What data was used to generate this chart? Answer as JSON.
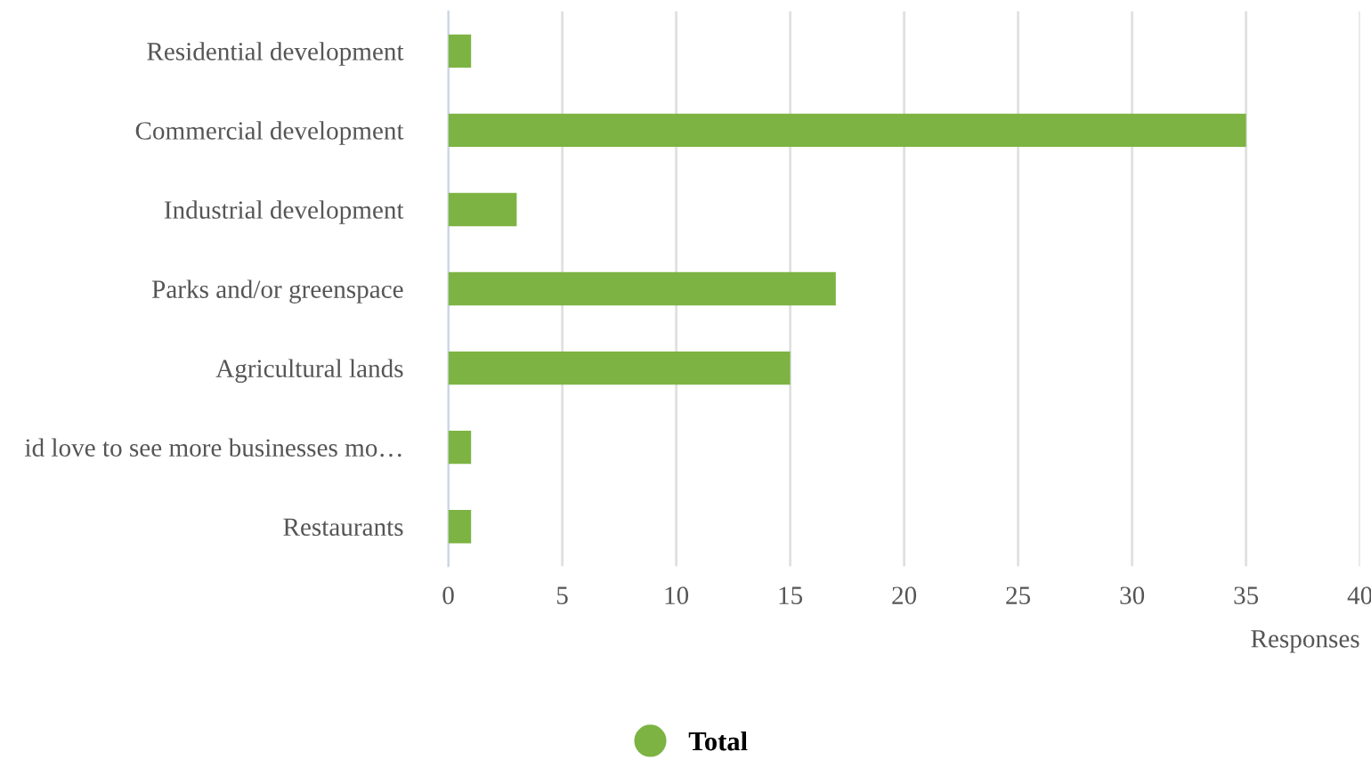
{
  "chart_data": {
    "type": "bar",
    "orientation": "horizontal",
    "categories": [
      "Residential development",
      "Commercial development",
      "Industrial development",
      "Parks and/or greenspace",
      "Agricultural lands",
      "id love to see more businesses mo…",
      "Restaurants"
    ],
    "series": [
      {
        "name": "Total",
        "color": "#7cb342",
        "values": [
          1,
          35,
          3,
          17,
          15,
          1,
          1
        ]
      }
    ],
    "xlabel": "Responses",
    "xlim": [
      0,
      40
    ],
    "xticks": [
      0,
      5,
      10,
      15,
      20,
      25,
      30,
      35,
      40
    ],
    "grid": "x",
    "legend": "bottom"
  }
}
